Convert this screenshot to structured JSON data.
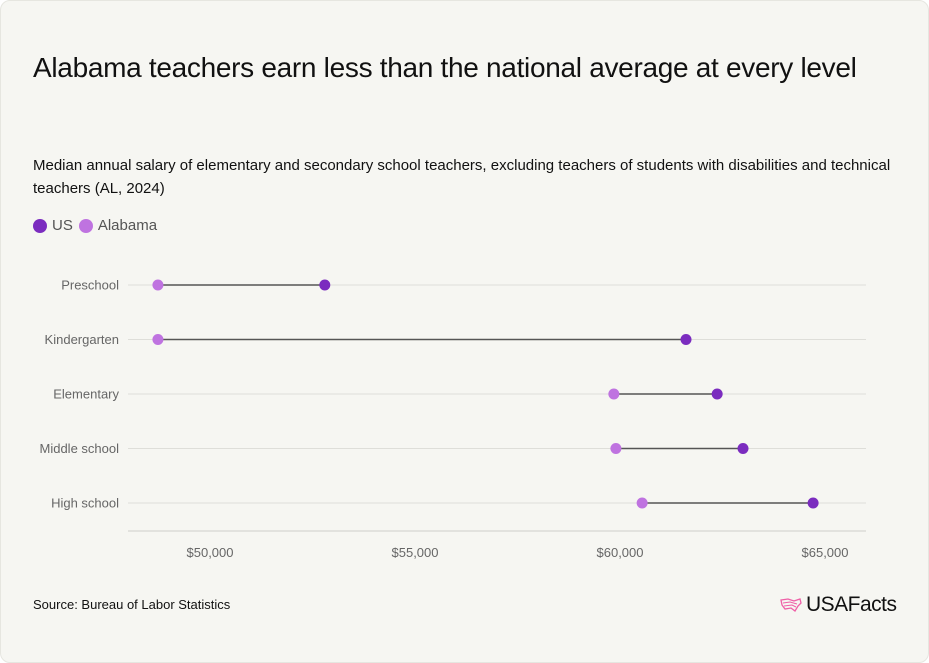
{
  "chart_data": {
    "type": "dumbbell",
    "title": "Alabama teachers earn less than the national average at every level",
    "subtitle": "Median annual salary of elementary and secondary school teachers, excluding teachers of students with disabilities and technical teachers (AL, 2024)",
    "legend": [
      {
        "name": "US",
        "color": "#7b2cbf"
      },
      {
        "name": "Alabama",
        "color": "#bf73e0"
      }
    ],
    "categories": [
      "Preschool",
      "Kindergarten",
      "Elementary",
      "Middle school",
      "High school"
    ],
    "series": [
      {
        "name": "US",
        "values": [
          52800,
          61610,
          62370,
          63000,
          64710
        ]
      },
      {
        "name": "Alabama",
        "values": [
          48730,
          48730,
          59850,
          59900,
          60540
        ]
      }
    ],
    "xlim": [
      48000,
      66000
    ],
    "xticks": [
      50000,
      55000,
      60000,
      65000
    ],
    "xtick_labels": [
      "$50,000",
      "$55,000",
      "$60,000",
      "$65,000"
    ],
    "grid": true,
    "legend_position": "top-left"
  },
  "footer": {
    "source": "Source: Bureau of Labor Statistics",
    "logo": "USAFacts"
  }
}
